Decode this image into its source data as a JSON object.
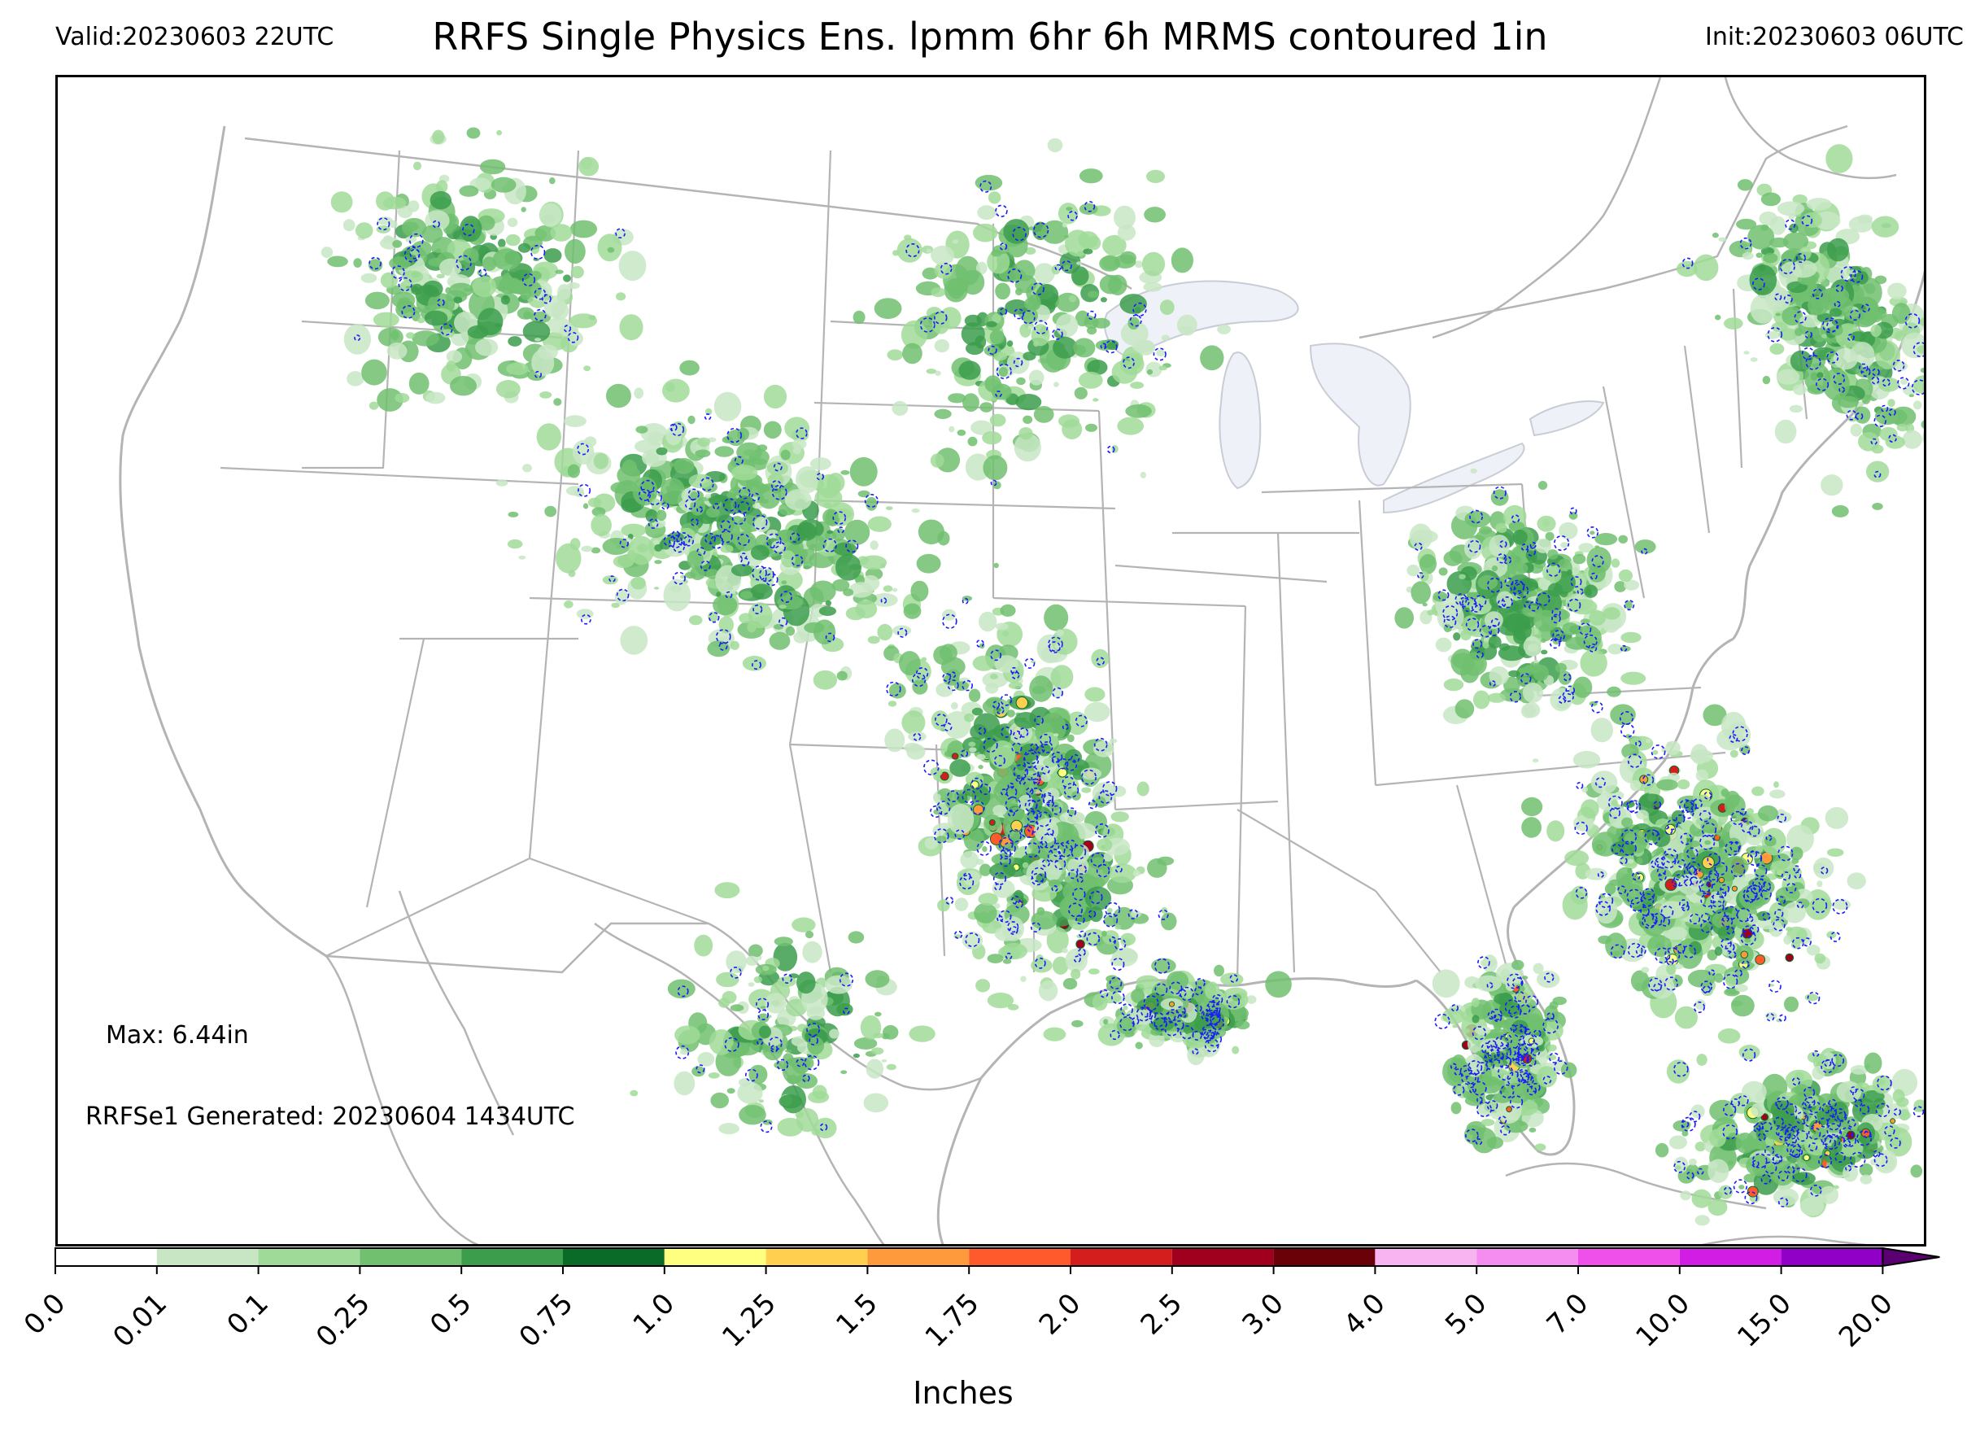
{
  "header": {
    "valid": "Valid:20230603 22UTC",
    "title": "RRFS Single Physics Ens. lpmm 6hr 6h MRMS contoured 1in",
    "init": "Init:20230603 06UTC"
  },
  "annotations": {
    "max": "Max: 6.44in",
    "generated": "RRFSe1 Generated: 20230604 1434UTC"
  },
  "colorbar": {
    "label": "Inches",
    "ticks": [
      "0.0",
      "0.01",
      "0.1",
      "0.25",
      "0.5",
      "0.75",
      "1.0",
      "1.25",
      "1.5",
      "1.75",
      "2.0",
      "2.5",
      "3.0",
      "4.0",
      "5.0",
      "7.0",
      "10.0",
      "15.0",
      "20.0"
    ],
    "colors": [
      "#ffffff",
      "#c8e6c4",
      "#a0da98",
      "#70c070",
      "#3c9e4c",
      "#0a6a28",
      "#ffff80",
      "#ffd050",
      "#ff9a3c",
      "#ff5a2c",
      "#d41e1e",
      "#a0001e",
      "#6a0008",
      "#f7b4f0",
      "#f58cf0",
      "#f050ea",
      "#d21ee4",
      "#9000c6"
    ],
    "extend_color": "#5a0070"
  },
  "map": {
    "land_border_color": "#b4b4b4",
    "lake_fill": "#eef2f8",
    "contour_color": "#1a1aff",
    "precip_clusters": [
      {
        "region": "northern-rockies",
        "intensity": 2
      },
      {
        "region": "central-rockies",
        "intensity": 3
      },
      {
        "region": "plains-oklahoma-texas",
        "intensity": 5
      },
      {
        "region": "louisiana-coast",
        "intensity": 5
      },
      {
        "region": "florida",
        "intensity": 5
      },
      {
        "region": "southeast-atlantic-offshore",
        "intensity": 5
      },
      {
        "region": "new-england-maritimes",
        "intensity": 3
      },
      {
        "region": "mid-atlantic-appalachians",
        "intensity": 3
      },
      {
        "region": "upper-midwest",
        "intensity": 2
      },
      {
        "region": "caribbean-bahamas",
        "intensity": 5
      },
      {
        "region": "mexico",
        "intensity": 2
      }
    ]
  }
}
